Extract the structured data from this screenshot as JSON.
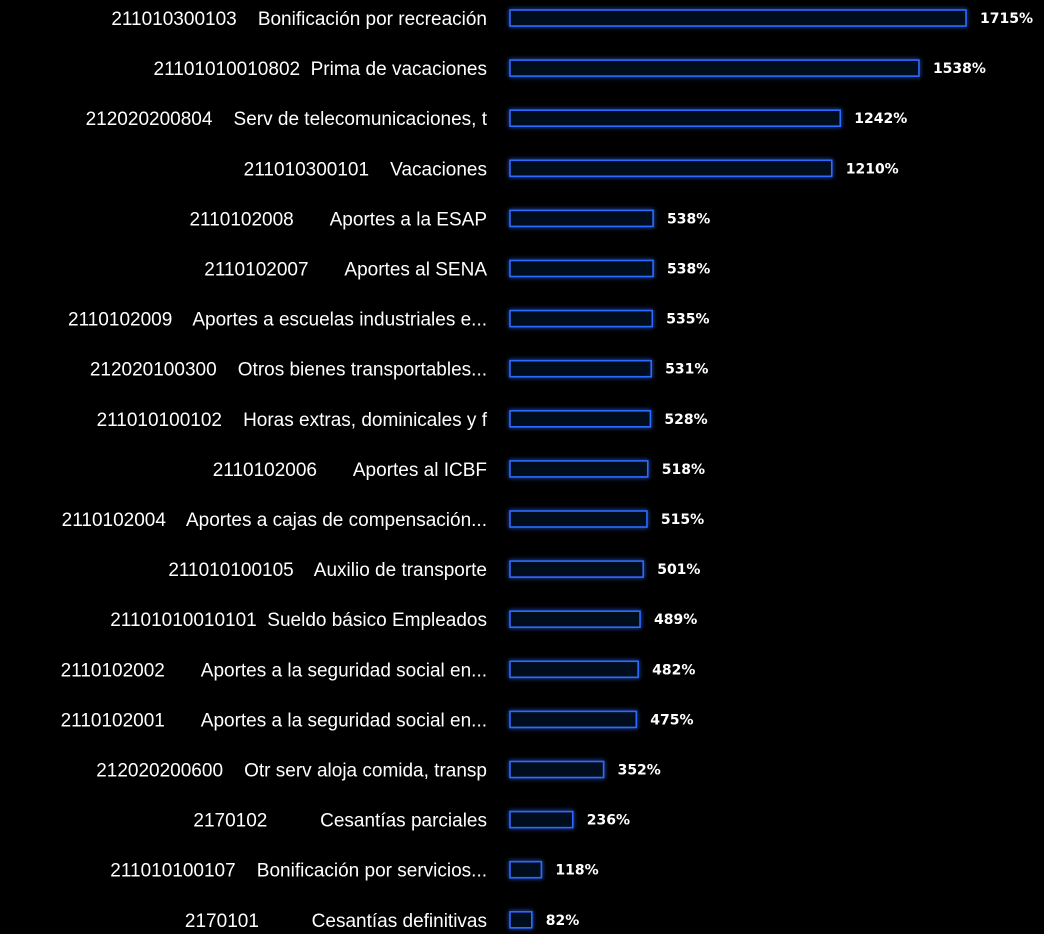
{
  "chart_data": {
    "type": "bar",
    "orientation": "horizontal",
    "title": "",
    "xlabel": "",
    "ylabel": "",
    "grid": false,
    "legend": "none",
    "colors": {
      "background": "#000000",
      "bar_fill": "#02081c",
      "bar_border": "#2f6bff",
      "bar_glow": "#1d4fd8",
      "text": "#ffffff"
    },
    "categories": [
      "211010300103    Bonificación por recreación",
      "21101010010802  Prima de vacaciones",
      "212020200804    Serv de telecomunicaciones, t",
      "211010300101    Vacaciones",
      "2110102008       Aportes a la ESAP",
      "2110102007       Aportes al SENA",
      "2110102009    Aportes a escuelas industriales e...",
      "212020100300    Otros bienes transportables...",
      "211010100102    Horas extras, dominicales y f",
      "2110102006       Aportes al ICBF",
      "2110102004    Aportes a cajas de compensación...",
      "211010100105    Auxilio de transporte",
      "21101010010101  Sueldo básico Empleados",
      "2110102002       Aportes a la seguridad social en...",
      "2110102001       Aportes a la seguridad social en...",
      "212020200600    Otr serv aloja comida, transp",
      "2170102          Cesantías parciales",
      "211010100107    Bonificación por servicios...",
      "2170101          Cesantías definitivas"
    ],
    "values": [
      1715,
      1538,
      1242,
      1210,
      538,
      538,
      535,
      531,
      528,
      518,
      515,
      501,
      489,
      482,
      475,
      352,
      236,
      118,
      82
    ],
    "value_labels": [
      "1715%",
      "1538%",
      "1242%",
      "1210%",
      "538%",
      "538%",
      "535%",
      "531%",
      "528%",
      "518%",
      "515%",
      "501%",
      "489%",
      "482%",
      "475%",
      "352%",
      "236%",
      "118%",
      "82%"
    ],
    "xlim": [
      0,
      1715
    ]
  }
}
